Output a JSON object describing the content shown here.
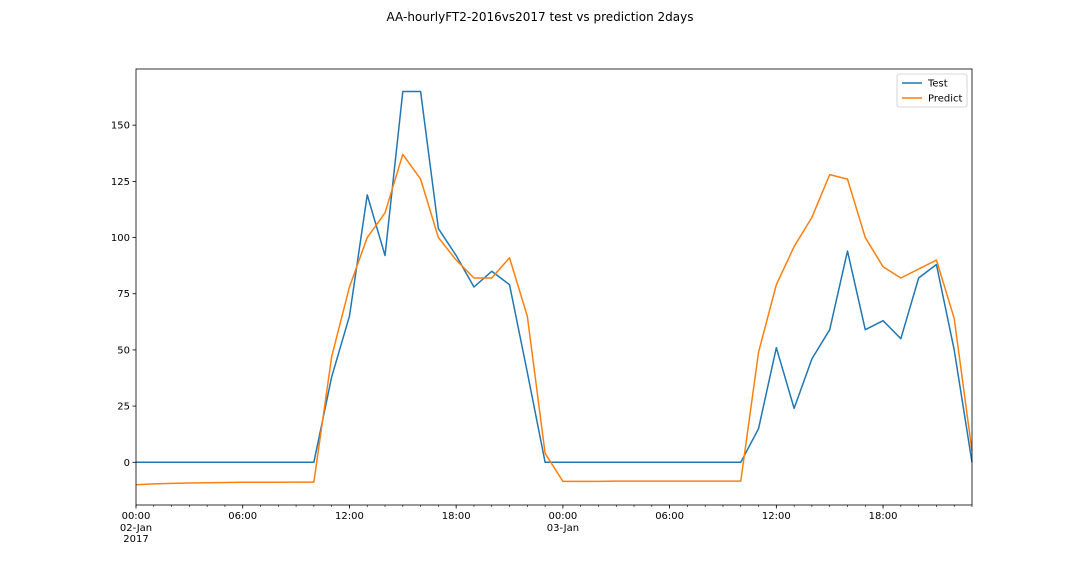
{
  "chart_data": {
    "type": "line",
    "title": "AA-hourlyFT2-2016vs2017 test vs prediction 2days",
    "xlabel": "",
    "ylabel": "",
    "x": [
      "2017-01-02 00:00",
      "2017-01-02 01:00",
      "2017-01-02 02:00",
      "2017-01-02 03:00",
      "2017-01-02 04:00",
      "2017-01-02 05:00",
      "2017-01-02 06:00",
      "2017-01-02 07:00",
      "2017-01-02 08:00",
      "2017-01-02 09:00",
      "2017-01-02 10:00",
      "2017-01-02 11:00",
      "2017-01-02 12:00",
      "2017-01-02 13:00",
      "2017-01-02 14:00",
      "2017-01-02 15:00",
      "2017-01-02 16:00",
      "2017-01-02 17:00",
      "2017-01-02 18:00",
      "2017-01-02 19:00",
      "2017-01-02 20:00",
      "2017-01-02 21:00",
      "2017-01-02 22:00",
      "2017-01-02 23:00",
      "2017-01-03 00:00",
      "2017-01-03 01:00",
      "2017-01-03 02:00",
      "2017-01-03 03:00",
      "2017-01-03 04:00",
      "2017-01-03 05:00",
      "2017-01-03 06:00",
      "2017-01-03 07:00",
      "2017-01-03 08:00",
      "2017-01-03 09:00",
      "2017-01-03 10:00",
      "2017-01-03 11:00",
      "2017-01-03 12:00",
      "2017-01-03 13:00",
      "2017-01-03 14:00",
      "2017-01-03 15:00",
      "2017-01-03 16:00",
      "2017-01-03 17:00",
      "2017-01-03 18:00",
      "2017-01-03 19:00",
      "2017-01-03 20:00",
      "2017-01-03 21:00",
      "2017-01-03 22:00",
      "2017-01-03 23:00"
    ],
    "series": [
      {
        "name": "Test",
        "color": "#1f77b4",
        "values": [
          0,
          0,
          0,
          0,
          0,
          0,
          0,
          0,
          0,
          0,
          0,
          38,
          65,
          119,
          92,
          165,
          165,
          104,
          92,
          78,
          85,
          79,
          40,
          0,
          0,
          0,
          0,
          0,
          0,
          0,
          0,
          0,
          0,
          0,
          0,
          15,
          51,
          24,
          46,
          59,
          94,
          59,
          63,
          55,
          82,
          88,
          50,
          0
        ]
      },
      {
        "name": "Predict",
        "color": "#ff7f0e",
        "values": [
          -10,
          -9.6,
          -9.4,
          -9.2,
          -9.1,
          -9,
          -8.9,
          -8.9,
          -8.9,
          -8.8,
          -8.8,
          47,
          78,
          100,
          111,
          137,
          126,
          100,
          90,
          82,
          82,
          91,
          65,
          4,
          -8.5,
          -8.5,
          -8.5,
          -8.4,
          -8.4,
          -8.4,
          -8.4,
          -8.4,
          -8.4,
          -8.4,
          -8.4,
          49,
          79,
          96,
          109,
          128,
          126,
          100,
          87,
          82,
          86,
          90,
          64,
          5
        ]
      }
    ],
    "ylim": [
      -19,
      175
    ],
    "yticks": [
      0,
      25,
      50,
      75,
      100,
      125,
      150
    ],
    "xticks_major": [
      {
        "index": 0,
        "label": "00:00",
        "sub": "02-Jan",
        "sub2": "2017"
      },
      {
        "index": 24,
        "label": "00:00",
        "sub": "03-Jan",
        "sub2": ""
      }
    ],
    "xticks_minor": [
      {
        "index": 6,
        "label": "06:00"
      },
      {
        "index": 12,
        "label": "12:00"
      },
      {
        "index": 18,
        "label": "18:00"
      },
      {
        "index": 30,
        "label": "06:00"
      },
      {
        "index": 36,
        "label": "12:00"
      },
      {
        "index": 42,
        "label": "18:00"
      }
    ],
    "grid": false,
    "legend": {
      "placement": "top-right",
      "entries": [
        "Test",
        "Predict"
      ]
    }
  }
}
